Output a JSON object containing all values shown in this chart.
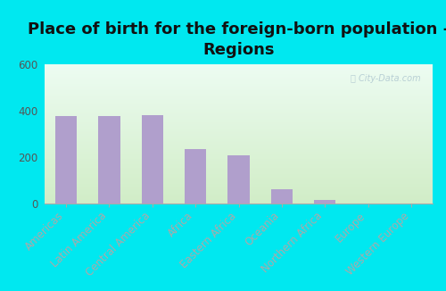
{
  "title": "Place of birth for the foreign-born population -\nRegions",
  "categories": [
    "Americas",
    "Latin America",
    "Central America",
    "Africa",
    "Eastern Africa",
    "Oceania",
    "Northern Africa",
    "Europe",
    "Western Europe"
  ],
  "values": [
    375,
    375,
    380,
    235,
    208,
    62,
    18,
    2,
    0
  ],
  "bar_color": "#b09fcc",
  "bg_color_topleft": "#e8f5e9",
  "bg_color_topright": "#f5fffa",
  "bg_color_bottom": "#d4eda0",
  "outer_bg": "#00e8f0",
  "ylim": [
    0,
    600
  ],
  "yticks": [
    0,
    200,
    400,
    600
  ],
  "title_fontsize": 13,
  "tick_fontsize": 8.5,
  "watermark": "City-Data.com"
}
